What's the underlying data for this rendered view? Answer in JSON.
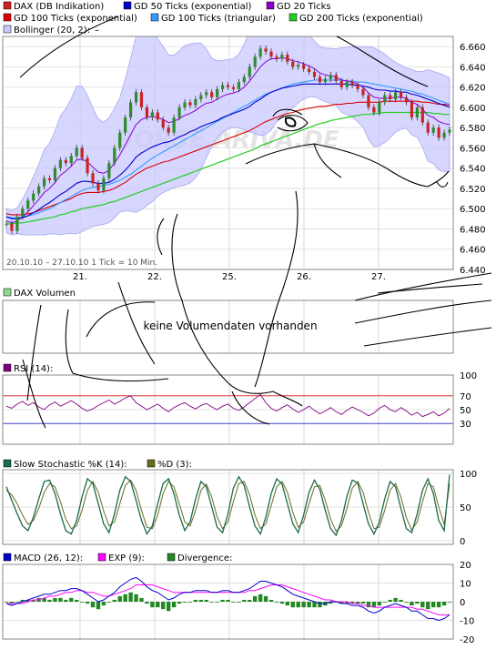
{
  "colors": {
    "price_up": "#2e8b2e",
    "price_down": "#cc2222",
    "gd50": "#0000cc",
    "gd20": "#8800cc",
    "gd100exp": "#dd0000",
    "gd100tri": "#3399ff",
    "gd200exp": "#22cc22",
    "bollinger_fill": "#c8c8ff",
    "rsi": "#800080",
    "rsi_hi": "#dd3333",
    "rsi_lo": "#4444cc",
    "stoch_k": "#1a6b4a",
    "stoch_d": "#6b6b20",
    "macd": "#0000cc",
    "macd_exp": "#ff00ff",
    "macd_div": "#228822",
    "sketch": "#000000"
  },
  "watermark": "BÖRSE ARIVA.DE",
  "chart_data": [
    {
      "type": "line",
      "panel": "price",
      "legend": [
        {
          "label": "DAX (DB Indikation)",
          "color": "#cc2222"
        },
        {
          "label": "GD 50 Ticks (exponential)",
          "color": "#0000cc"
        },
        {
          "label": "GD 20 Ticks",
          "color": "#8800cc"
        },
        {
          "label": "GD 100 Ticks (exponential)",
          "color": "#dd0000"
        },
        {
          "label": "GD 100 Ticks (triangular)",
          "color": "#3399ff"
        },
        {
          "label": "GD 200 Ticks (exponential)",
          "color": "#22cc22"
        },
        {
          "label": "Bollinger (20, 2):",
          "color": "#c8c8ff",
          "extra": "–"
        }
      ],
      "info": "20.10.10 – 27.10.10   1 Tick = 10 Min.",
      "x_tick_labels": [
        "21.",
        "22.",
        "25.",
        "26.",
        "27."
      ],
      "y_tick_labels": [
        "6.660",
        "6.640",
        "6.620",
        "6.600",
        "6.580",
        "6.560",
        "6.540",
        "6.520",
        "6.500",
        "6.480",
        "6.460",
        "6.440"
      ],
      "ylim": [
        6440,
        6670
      ],
      "grid": true,
      "price": [
        6485,
        6478,
        6492,
        6500,
        6508,
        6515,
        6522,
        6530,
        6528,
        6540,
        6548,
        6545,
        6552,
        6560,
        6550,
        6535,
        6525,
        6518,
        6530,
        6545,
        6560,
        6575,
        6590,
        6605,
        6615,
        6600,
        6590,
        6595,
        6588,
        6580,
        6575,
        6590,
        6600,
        6605,
        6602,
        6608,
        6612,
        6615,
        6610,
        6618,
        6622,
        6620,
        6618,
        6625,
        6630,
        6640,
        6650,
        6658,
        6655,
        6650,
        6648,
        6652,
        6645,
        6640,
        6642,
        6638,
        6635,
        6630,
        6625,
        6628,
        6632,
        6626,
        6620,
        6625,
        6622,
        6618,
        6612,
        6600,
        6595,
        6605,
        6612,
        6608,
        6615,
        6610,
        6605,
        6590,
        6600,
        6585,
        6575,
        6580,
        6570,
        6575,
        6578
      ],
      "gd20": [
        6488,
        6486,
        6488,
        6492,
        6497,
        6503,
        6509,
        6516,
        6520,
        6526,
        6533,
        6537,
        6542,
        6548,
        6549,
        6546,
        6541,
        6536,
        6535,
        6538,
        6545,
        6553,
        6563,
        6573,
        6583,
        6588,
        6590,
        6591,
        6590,
        6588,
        6585,
        6586,
        6589,
        6592,
        6594,
        6597,
        6601,
        6604,
        6605,
        6608,
        6611,
        6613,
        6614,
        6616,
        6620,
        6626,
        6633,
        6640,
        6645,
        6648,
        6648,
        6649,
        6648,
        6646,
        6645,
        6643,
        6641,
        6638,
        6634,
        6632,
        6631,
        6630,
        6627,
        6626,
        6625,
        6623,
        6620,
        6614,
        6610,
        6609,
        6609,
        6609,
        6610,
        6610,
        6609,
        6605,
        6603,
        6598,
        6592,
        6590,
        6586,
        6584,
        6583
      ],
      "gd50": [
        6492,
        6490,
        6490,
        6491,
        6493,
        6496,
        6499,
        6503,
        6506,
        6510,
        6514,
        6517,
        6521,
        6525,
        6527,
        6527,
        6526,
        6525,
        6525,
        6526,
        6529,
        6533,
        6538,
        6544,
        6551,
        6555,
        6558,
        6561,
        6563,
        6565,
        6566,
        6568,
        6571,
        6573,
        6576,
        6578,
        6581,
        6583,
        6585,
        6587,
        6590,
        6592,
        6594,
        6596,
        6598,
        6601,
        6605,
        6608,
        6612,
        6615,
        6617,
        6619,
        6620,
        6621,
        6622,
        6623,
        6623,
        6623,
        6623,
        6623,
        6623,
        6623,
        6623,
        6623,
        6622,
        6622,
        6621,
        6620,
        6618,
        6617,
        6617,
        6616,
        6616,
        6615,
        6615,
        6613,
        6612,
        6610,
        6608,
        6606,
        6604,
        6602,
        6600
      ],
      "gd100exp": [
        6495,
        6494,
        6494,
        6494,
        6495,
        6496,
        6498,
        6500,
        6502,
        6504,
        6506,
        6508,
        6510,
        6513,
        6515,
        6516,
        6516,
        6516,
        6517,
        6518,
        6520,
        6523,
        6526,
        6530,
        6534,
        6537,
        6540,
        6542,
        6544,
        6546,
        6547,
        6549,
        6551,
        6553,
        6555,
        6557,
        6559,
        6561,
        6563,
        6565,
        6567,
        6569,
        6571,
        6573,
        6575,
        6577,
        6580,
        6583,
        6586,
        6588,
        6590,
        6592,
        6594,
        6595,
        6597,
        6598,
        6599,
        6600,
        6601,
        6601,
        6602,
        6603,
        6603,
        6604,
        6604,
        6605,
        6605,
        6605,
        6605,
        6605,
        6606,
        6606,
        6606,
        6606,
        6606,
        6606,
        6606,
        6605,
        6605,
        6604,
        6603,
        6603,
        6602
      ],
      "gd100tri": [
        6492,
        6491,
        6491,
        6492,
        6493,
        6494,
        6496,
        6498,
        6500,
        6503,
        6506,
        6509,
        6512,
        6515,
        6518,
        6520,
        6521,
        6522,
        6523,
        6524,
        6526,
        6528,
        6531,
        6534,
        6538,
        6542,
        6546,
        6550,
        6553,
        6556,
        6559,
        6562,
        6565,
        6568,
        6571,
        6574,
        6577,
        6580,
        6583,
        6586,
        6589,
        6592,
        6595,
        6598,
        6601,
        6604,
        6607,
        6610,
        6613,
        6615,
        6617,
        6619,
        6621,
        6623,
        6624,
        6625,
        6626,
        6627,
        6627,
        6627,
        6627,
        6627,
        6627,
        6626,
        6626,
        6625,
        6625,
        6624,
        6623,
        6622,
        6621,
        6620,
        6619,
        6618,
        6617,
        6616,
        6614,
        6613,
        6611,
        6609,
        6607,
        6605,
        6603
      ],
      "gd200exp": [
        6485,
        6485,
        6486,
        6486,
        6487,
        6488,
        6489,
        6490,
        6491,
        6492,
        6494,
        6495,
        6497,
        6498,
        6500,
        6501,
        6502,
        6503,
        6504,
        6506,
        6507,
        6509,
        6511,
        6513,
        6515,
        6517,
        6519,
        6521,
        6523,
        6525,
        6527,
        6529,
        6531,
        6533,
        6535,
        6537,
        6539,
        6541,
        6543,
        6545,
        6547,
        6549,
        6551,
        6553,
        6555,
        6557,
        6559,
        6562,
        6564,
        6566,
        6568,
        6570,
        6572,
        6574,
        6576,
        6578,
        6580,
        6582,
        6584,
        6585,
        6587,
        6588,
        6589,
        6590,
        6591,
        6592,
        6593,
        6593,
        6594,
        6594,
        6595,
        6595,
        6595,
        6595,
        6595,
        6595,
        6595,
        6595,
        6595,
        6594,
        6594,
        6593,
        6593
      ]
    },
    {
      "type": "line",
      "panel": "volume",
      "legend": [
        {
          "label": "DAX Volumen",
          "color": "#8fd88f"
        }
      ],
      "message": "keine Volumendaten vorhanden"
    },
    {
      "type": "line",
      "panel": "rsi",
      "legend": [
        {
          "label": "RSI (14):",
          "color": "#800080"
        }
      ],
      "y_tick_labels": [
        "100",
        "70",
        "50",
        "30"
      ],
      "ylim": [
        0,
        100
      ],
      "levels": [
        70,
        30
      ],
      "values": [
        55,
        52,
        58,
        62,
        56,
        60,
        54,
        50,
        57,
        61,
        55,
        59,
        63,
        58,
        52,
        48,
        51,
        56,
        60,
        64,
        58,
        62,
        67,
        70,
        60,
        55,
        50,
        54,
        58,
        52,
        47,
        53,
        57,
        60,
        55,
        51,
        56,
        59,
        54,
        50,
        55,
        58,
        52,
        49,
        54,
        60,
        66,
        72,
        60,
        52,
        48,
        53,
        57,
        51,
        46,
        50,
        55,
        49,
        44,
        48,
        53,
        47,
        43,
        49,
        54,
        50,
        46,
        41,
        45,
        52,
        56,
        50,
        47,
        53,
        48,
        42,
        46,
        40,
        43,
        47,
        41,
        45,
        52
      ]
    },
    {
      "type": "line",
      "panel": "stochastic",
      "legend": [
        {
          "label": "Slow Stochastic %K (14):",
          "color": "#1a6b4a"
        },
        {
          "label": "%D (3):",
          "color": "#6b6b20"
        }
      ],
      "y_tick_labels": [
        "100",
        "50",
        "0"
      ],
      "ylim": [
        0,
        100
      ],
      "k": [
        80,
        60,
        40,
        22,
        15,
        35,
        62,
        88,
        90,
        70,
        40,
        15,
        10,
        30,
        65,
        92,
        85,
        55,
        25,
        12,
        40,
        75,
        95,
        88,
        60,
        30,
        10,
        22,
        55,
        85,
        92,
        70,
        38,
        15,
        28,
        62,
        88,
        80,
        50,
        20,
        12,
        40,
        78,
        95,
        82,
        50,
        22,
        10,
        35,
        70,
        92,
        84,
        55,
        25,
        12,
        38,
        72,
        90,
        76,
        45,
        18,
        8,
        30,
        66,
        90,
        86,
        55,
        25,
        10,
        28,
        62,
        88,
        80,
        48,
        18,
        12,
        40,
        75,
        92,
        70,
        30,
        15,
        98
      ],
      "d": [
        75,
        68,
        55,
        38,
        24,
        30,
        48,
        72,
        85,
        80,
        58,
        32,
        18,
        22,
        45,
        75,
        88,
        72,
        44,
        22,
        28,
        55,
        82,
        90,
        75,
        45,
        20,
        18,
        38,
        70,
        88,
        80,
        55,
        28,
        22,
        45,
        75,
        84,
        65,
        35,
        18,
        28,
        58,
        85,
        88,
        68,
        38,
        18,
        25,
        52,
        80,
        88,
        72,
        42,
        20,
        28,
        55,
        80,
        82,
        60,
        32,
        14,
        22,
        48,
        78,
        88,
        72,
        42,
        18,
        20,
        45,
        75,
        85,
        65,
        34,
        16,
        28,
        58,
        85,
        80,
        50,
        24,
        85
      ]
    },
    {
      "type": "line",
      "panel": "macd",
      "legend": [
        {
          "label": "MACD (26, 12):",
          "color": "#0000cc"
        },
        {
          "label": "EXP (9):",
          "color": "#ff00ff"
        },
        {
          "label": "Divergence:",
          "color": "#228822"
        }
      ],
      "y_tick_labels": [
        "20",
        "10",
        "0",
        "-10",
        "-20"
      ],
      "ylim": [
        -20,
        20
      ],
      "macd": [
        -1,
        -2,
        -1,
        0,
        1,
        2,
        3,
        4,
        4,
        5,
        6,
        6,
        7,
        7,
        6,
        4,
        2,
        0,
        1,
        3,
        5,
        8,
        10,
        12,
        13,
        11,
        8,
        6,
        5,
        3,
        1,
        2,
        4,
        5,
        5,
        6,
        6,
        6,
        5,
        5,
        6,
        6,
        5,
        5,
        6,
        7,
        9,
        11,
        11,
        10,
        9,
        8,
        6,
        4,
        3,
        2,
        1,
        0,
        -1,
        -1,
        0,
        0,
        -1,
        -1,
        -2,
        -2,
        -3,
        -5,
        -6,
        -5,
        -3,
        -2,
        -1,
        -2,
        -3,
        -5,
        -5,
        -7,
        -9,
        -9,
        -10,
        -9,
        -7
      ],
      "exp": [
        -1,
        -1,
        -1,
        -1,
        0,
        1,
        1,
        2,
        3,
        3,
        4,
        5,
        5,
        6,
        6,
        5,
        5,
        4,
        3,
        3,
        4,
        5,
        6,
        7,
        9,
        9,
        9,
        9,
        8,
        7,
        6,
        5,
        5,
        5,
        5,
        5,
        5,
        5,
        5,
        5,
        5,
        5,
        5,
        5,
        5,
        6,
        6,
        7,
        8,
        9,
        9,
        9,
        8,
        7,
        6,
        5,
        4,
        3,
        2,
        1,
        1,
        0,
        0,
        0,
        -1,
        -1,
        -2,
        -2,
        -3,
        -3,
        -3,
        -3,
        -3,
        -3,
        -3,
        -3,
        -4,
        -4,
        -5,
        -6,
        -7,
        -7,
        -7
      ]
    }
  ]
}
